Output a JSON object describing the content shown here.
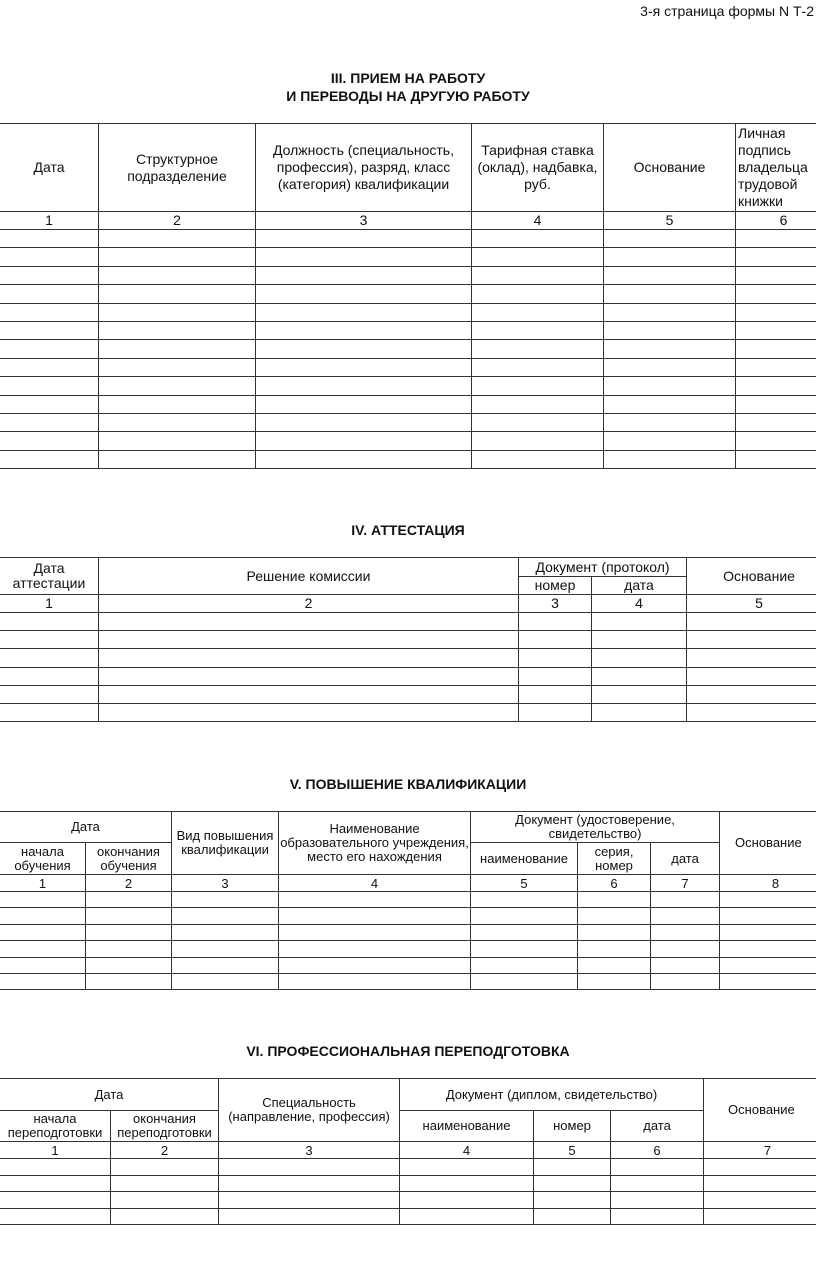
{
  "page_label": "3-я страница формы N Т-2",
  "section3": {
    "title_line1": "III. ПРИЕМ НА РАБОТУ",
    "title_line2": "И ПЕРЕВОДЫ НА ДРУГУЮ РАБОТУ",
    "headers": [
      "Дата",
      "Структурное подразделение",
      "Должность (специальность, профессия), разряд, класс (категория) квалификации",
      "Тарифная ставка (оклад), надбавка, руб.",
      "Основание",
      "Личная подпись владельца трудовой книжки"
    ],
    "numbers": [
      "1",
      "2",
      "3",
      "4",
      "5",
      "6"
    ]
  },
  "section4": {
    "title": "IV. АТТЕСТАЦИЯ",
    "headers": {
      "date": "Дата аттестации",
      "decision": "Решение комиссии",
      "document": "Документ (протокол)",
      "number": "номер",
      "date2": "дата",
      "basis": "Основание"
    },
    "numbers": [
      "1",
      "2",
      "3",
      "4",
      "5"
    ]
  },
  "section5": {
    "title": "V. ПОВЫШЕНИЕ КВАЛИФИКАЦИИ",
    "headers": {
      "date": "Дата",
      "start": "начала обучения",
      "end": "окончания обучения",
      "type": "Вид повышения квалификации",
      "institution": "Наименование образовательного учреждения, место его нахождения",
      "document": "Документ (удостоверение, свидетельство)",
      "name": "наименование",
      "series": "серия, номер",
      "date2": "дата",
      "basis": "Основание"
    },
    "numbers": [
      "1",
      "2",
      "3",
      "4",
      "5",
      "6",
      "7",
      "8"
    ]
  },
  "section6": {
    "title": "VI. ПРОФЕССИОНАЛЬНАЯ ПЕРЕПОДГОТОВКА",
    "headers": {
      "date": "Дата",
      "start": "начала переподготовки",
      "end": "окончания переподготовки",
      "specialty": "Специальность (направление, профессия)",
      "document": "Документ (диплом, свидетельство)",
      "name": "наименование",
      "number": "номер",
      "date2": "дата",
      "basis": "Основание"
    },
    "numbers": [
      "1",
      "2",
      "3",
      "4",
      "5",
      "6",
      "7"
    ]
  }
}
